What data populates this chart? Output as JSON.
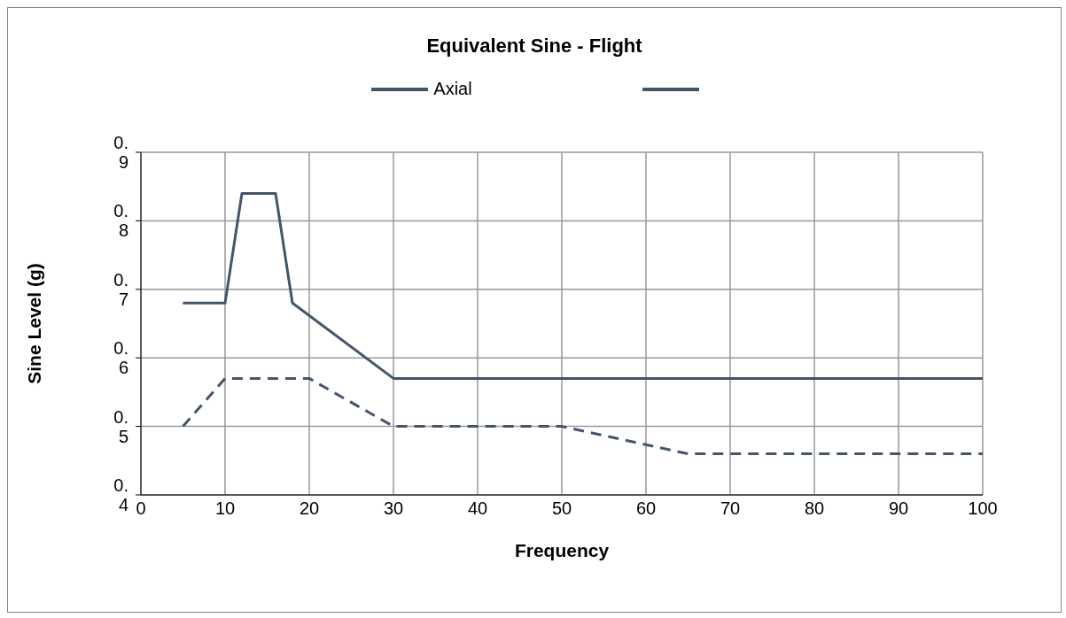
{
  "chart_data": {
    "type": "line",
    "title": "Equivalent Sine - Flight",
    "xlabel": "Frequency",
    "ylabel": "Sine Level (g)",
    "xlim": [
      0,
      100
    ],
    "xticks": [
      0,
      10,
      20,
      30,
      40,
      50,
      60,
      70,
      80,
      90,
      100
    ],
    "ylim": [
      0.4,
      0.9
    ],
    "yticks": [
      0.4,
      0.5,
      0.6,
      0.7,
      0.8,
      0.9
    ],
    "grid": true,
    "legend": "top",
    "marker": "none",
    "series": [
      {
        "name": "Axial",
        "color": "#44546a",
        "line_style": "solid",
        "x": [
          5,
          10,
          12,
          16,
          18,
          30,
          100
        ],
        "values": [
          0.68,
          0.68,
          0.84,
          0.84,
          0.68,
          0.57,
          0.57
        ]
      },
      {
        "color": "#44546a",
        "line_style": "dashed",
        "x": [
          5,
          10,
          20,
          30,
          50,
          65,
          100
        ],
        "values": [
          0.5,
          0.57,
          0.57,
          0.5,
          0.5,
          0.46,
          0.46
        ]
      }
    ]
  }
}
